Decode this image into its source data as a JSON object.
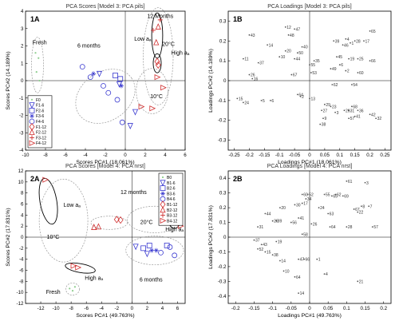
{
  "chart_data": [
    {
      "type": "scatter",
      "panel": "1A",
      "title": "PCA Scores [Model 3: PCA pils]",
      "xlabel": "Scores PC#1 (18.061%)",
      "ylabel": "Scores PC#2 (14.189%)",
      "xlim": [
        -10,
        6
      ],
      "ylim": [
        -4,
        4
      ],
      "xticks": [
        -10,
        -8,
        -6,
        -4,
        -2,
        0,
        2,
        4,
        6
      ],
      "yticks": [
        -4,
        -3,
        -2,
        -1,
        0,
        1,
        2,
        3,
        4
      ],
      "legend": "bottom-left",
      "series": [
        {
          "name": "F0",
          "marker": "dot",
          "color": "#8fcf8f",
          "points": [
            [
              -9.0,
              1.6
            ],
            [
              -8.7,
              1.3
            ],
            [
              -8.9,
              0.5
            ],
            [
              -8.6,
              0.0
            ]
          ]
        },
        {
          "name": "F1-6",
          "marker": "triangle-down",
          "color": "#3a3ad0",
          "points": [
            [
              -2.6,
              0.4
            ],
            [
              -0.6,
              -0.2
            ],
            [
              1.0,
              -1.8
            ],
            [
              0.5,
              -2.6
            ]
          ]
        },
        {
          "name": "F2-6",
          "marker": "square",
          "color": "#3a3ad0",
          "points": [
            [
              -1.0,
              0.3
            ],
            [
              -0.5,
              0.1
            ]
          ]
        },
        {
          "name": "F3-6",
          "marker": "star",
          "color": "#3a3ad0",
          "points": [
            [
              -3.2,
              0.4
            ],
            [
              -0.4,
              -0.3
            ]
          ]
        },
        {
          "name": "F4-6",
          "marker": "circle",
          "color": "#3a3ad0",
          "points": [
            [
              -4.3,
              0.8
            ],
            [
              -3.5,
              0.2
            ],
            [
              -2.2,
              -0.3
            ],
            [
              -1.7,
              -0.7
            ],
            [
              -0.8,
              -1.1
            ],
            [
              -0.3,
              -2.4
            ]
          ]
        },
        {
          "name": "F1-12",
          "marker": "diamond",
          "color": "#d03030",
          "points": [
            [
              3.2,
              1.1
            ],
            [
              3.3,
              0.9
            ]
          ]
        },
        {
          "name": "F2-12",
          "marker": "triangle-up",
          "color": "#d03030",
          "points": [
            [
              3.1,
              2.2
            ],
            [
              3.3,
              3.1
            ]
          ]
        },
        {
          "name": "F3-12",
          "marker": "plus",
          "color": "#d03030",
          "points": [
            [
              2.8,
              2.9
            ],
            [
              3.5,
              3.5
            ]
          ]
        },
        {
          "name": "F4-12",
          "marker": "triangle-right",
          "color": "#d03030",
          "points": [
            [
              3.2,
              0.2
            ],
            [
              3.8,
              -0.4
            ],
            [
              1.6,
              -1.5
            ],
            [
              2.7,
              -1.6
            ]
          ]
        }
      ],
      "annotations": [
        {
          "text": "Fresh",
          "x": -9.3,
          "y": 2.1
        },
        {
          "text": "6 months",
          "x": -4.8,
          "y": 1.9
        },
        {
          "text": "12 Months",
          "x": 2.2,
          "y": 3.6
        },
        {
          "text": "Low aₐ",
          "x": 0.9,
          "y": 2.3
        },
        {
          "text": "20°C",
          "x": 3.7,
          "y": 2.0
        },
        {
          "text": "High aₐ",
          "x": 4.6,
          "y": 1.5
        },
        {
          "text": "10°C",
          "x": 2.5,
          "y": -1.0
        }
      ]
    },
    {
      "type": "scatter",
      "panel": "1B",
      "title": "PCA Loadings [Model 3: PCA pils]",
      "xlabel": "Loadings PC#1 (18.061%)",
      "ylabel": "Loadings PC#2 (14.189%)",
      "xlim": [
        -0.27,
        0.27
      ],
      "ylim": [
        -0.35,
        0.35
      ],
      "xticks": [
        -0.25,
        -0.2,
        -0.15,
        -0.1,
        -0.05,
        0,
        0.05,
        0.1,
        0.15,
        0.2,
        0.25
      ],
      "yticks": [
        -0.3,
        -0.2,
        -0.1,
        0,
        0.1,
        0.2,
        0.3
      ],
      "points": [
        {
          "label": "12",
          "x": -0.08,
          "y": 0.27
        },
        {
          "label": "47",
          "x": -0.05,
          "y": 0.26
        },
        {
          "label": "43",
          "x": -0.2,
          "y": 0.23
        },
        {
          "label": "48",
          "x": -0.07,
          "y": 0.23
        },
        {
          "label": "14",
          "x": -0.14,
          "y": 0.18
        },
        {
          "label": "40",
          "x": -0.025,
          "y": 0.17
        },
        {
          "label": "20",
          "x": -0.08,
          "y": 0.15
        },
        {
          "label": "50",
          "x": -0.04,
          "y": 0.14
        },
        {
          "label": "10",
          "x": -0.1,
          "y": 0.12
        },
        {
          "label": "44",
          "x": -0.05,
          "y": 0.11
        },
        {
          "label": "39",
          "x": 0.08,
          "y": 0.2
        },
        {
          "label": "4",
          "x": 0.12,
          "y": 0.21
        },
        {
          "label": "1",
          "x": 0.135,
          "y": 0.19
        },
        {
          "label": "28",
          "x": 0.15,
          "y": 0.2
        },
        {
          "label": "17",
          "x": 0.18,
          "y": 0.2
        },
        {
          "label": "65",
          "x": 0.2,
          "y": 0.25
        },
        {
          "label": "46",
          "x": 0.11,
          "y": 0.18
        },
        {
          "label": "45",
          "x": 0.09,
          "y": 0.12
        },
        {
          "label": "19",
          "x": 0.13,
          "y": 0.11
        },
        {
          "label": "25",
          "x": 0.16,
          "y": 0.11
        },
        {
          "label": "11",
          "x": -0.22,
          "y": 0.11
        },
        {
          "label": "37",
          "x": -0.17,
          "y": 0.09
        },
        {
          "label": "66",
          "x": 0.2,
          "y": 0.1
        },
        {
          "label": "35",
          "x": 0.015,
          "y": 0.1
        },
        {
          "label": "55",
          "x": 0.0,
          "y": 0.08
        },
        {
          "label": "49",
          "x": 0.07,
          "y": 0.06
        },
        {
          "label": "6",
          "x": 0.1,
          "y": 0.08
        },
        {
          "label": "2",
          "x": 0.12,
          "y": 0.05
        },
        {
          "label": "60",
          "x": 0.16,
          "y": 0.04
        },
        {
          "label": "53",
          "x": 0.005,
          "y": 0.04
        },
        {
          "label": "26",
          "x": -0.2,
          "y": 0.03
        },
        {
          "label": "16",
          "x": -0.19,
          "y": 0.01
        },
        {
          "label": "67",
          "x": -0.06,
          "y": 0.03
        },
        {
          "label": "62",
          "x": 0.075,
          "y": -0.02
        },
        {
          "label": "54",
          "x": 0.14,
          "y": -0.02
        },
        {
          "label": "64",
          "x": -0.04,
          "y": -0.07
        },
        {
          "label": "2",
          "x": -0.03,
          "y": -0.08
        },
        {
          "label": "13",
          "x": 0.0,
          "y": -0.09
        },
        {
          "label": "15",
          "x": -0.24,
          "y": -0.09
        },
        {
          "label": "24",
          "x": -0.22,
          "y": -0.11
        },
        {
          "label": "5",
          "x": -0.16,
          "y": -0.1
        },
        {
          "label": "6",
          "x": -0.13,
          "y": -0.1
        },
        {
          "label": "29",
          "x": 0.05,
          "y": -0.12
        },
        {
          "label": "23",
          "x": 0.07,
          "y": -0.13
        },
        {
          "label": "68",
          "x": 0.14,
          "y": -0.13
        },
        {
          "label": "27",
          "x": 0.04,
          "y": -0.15
        },
        {
          "label": "3",
          "x": 0.085,
          "y": -0.16
        },
        {
          "label": "26",
          "x": 0.115,
          "y": -0.15
        },
        {
          "label": "31",
          "x": 0.13,
          "y": -0.15
        },
        {
          "label": "36",
          "x": 0.16,
          "y": -0.15
        },
        {
          "label": "42",
          "x": 0.2,
          "y": -0.17
        },
        {
          "label": "9",
          "x": 0.045,
          "y": -0.19
        },
        {
          "label": "38",
          "x": 0.035,
          "y": -0.22
        },
        {
          "label": "41",
          "x": 0.15,
          "y": -0.18
        },
        {
          "label": "32",
          "x": 0.22,
          "y": -0.19
        },
        {
          "label": "57",
          "x": 0.13,
          "y": -0.19
        }
      ]
    },
    {
      "type": "scatter",
      "panel": "2A",
      "title": "PCA Scores [Model 4: PCA nrst]",
      "xlabel": "Scores PC#1 (49.763%)",
      "ylabel": "Scores PC#2 (17.831%)",
      "xlim": [
        -14,
        7
      ],
      "ylim": [
        -12,
        12
      ],
      "xticks": [
        -12,
        -10,
        -8,
        -6,
        -4,
        -2,
        0,
        2,
        4,
        6
      ],
      "yticks": [
        -12,
        -10,
        -8,
        -6,
        -4,
        -2,
        0,
        2,
        4,
        6,
        8,
        10,
        12
      ],
      "legend": "top-right",
      "series": [
        {
          "name": "B0",
          "marker": "dot",
          "color": "#8fcf8f",
          "points": [
            [
              -7.5,
              -9.0
            ],
            [
              -8.2,
              -9.3
            ],
            [
              -7.8,
              -9.7
            ]
          ]
        },
        {
          "name": "B1-6",
          "marker": "triangle-down",
          "color": "#3a3ad0",
          "points": [
            [
              0.5,
              -1.7
            ],
            [
              2.0,
              -3.0
            ]
          ]
        },
        {
          "name": "B2-6",
          "marker": "square",
          "color": "#3a3ad0",
          "points": [
            [
              1.5,
              -2.0
            ],
            [
              2.3,
              -1.5
            ],
            [
              4.6,
              -1.5
            ]
          ]
        },
        {
          "name": "B3-6",
          "marker": "star",
          "color": "#3a3ad0",
          "points": [
            [
              3.2,
              -2.4
            ],
            [
              2.6,
              -2.4
            ]
          ]
        },
        {
          "name": "B4-6",
          "marker": "circle",
          "color": "#3a3ad0",
          "points": [
            [
              3.8,
              -2.8
            ],
            [
              5.0,
              -1.8
            ],
            [
              5.6,
              -3.3
            ]
          ]
        },
        {
          "name": "B1-12",
          "marker": "diamond",
          "color": "#d03030",
          "points": [
            [
              -2.0,
              3.2
            ],
            [
              -1.5,
              3.1
            ]
          ]
        },
        {
          "name": "B2-12",
          "marker": "triangle-up",
          "color": "#d03030",
          "points": [
            [
              -5.0,
              1.8
            ],
            [
              -4.4,
              1.9
            ]
          ]
        },
        {
          "name": "B3-12",
          "marker": "plus",
          "color": "#d03030",
          "points": [
            [
              5.4,
              3.4
            ],
            [
              5.7,
              4.0
            ]
          ]
        },
        {
          "name": "B4-12",
          "marker": "triangle-right",
          "color": "#d03030",
          "points": [
            [
              -11.4,
              10.4
            ],
            [
              -7.7,
              -5.2
            ],
            [
              -7.1,
              -5.5
            ],
            [
              6.0,
              2.7
            ],
            [
              6.4,
              2.0
            ]
          ]
        }
      ],
      "annotations": [
        {
          "text": "12 months",
          "x": -1.5,
          "y": 7.8
        },
        {
          "text": "Low aₐ",
          "x": -9.0,
          "y": 5.5
        },
        {
          "text": "10°C",
          "x": -11.2,
          "y": -0.3
        },
        {
          "text": "20°C",
          "x": 1.1,
          "y": 2.4
        },
        {
          "text": "High aₐ",
          "x": 4.4,
          "y": 1.1
        },
        {
          "text": "High aₐ",
          "x": -6.2,
          "y": -7.7
        },
        {
          "text": "Fresh",
          "x": -11.3,
          "y": -10.3
        },
        {
          "text": "6 months",
          "x": 1.0,
          "y": -8.0
        }
      ]
    },
    {
      "type": "scatter",
      "panel": "2B",
      "title": "PCA Loadings [Model 4: PCA nrst]",
      "xlabel": "Loadings PC#1 (49.763%)",
      "ylabel": "Loadings PC#2 (17.831%)",
      "xlim": [
        -0.22,
        0.22
      ],
      "ylim": [
        -0.45,
        0.45
      ],
      "xticks": [
        -0.2,
        -0.15,
        -0.1,
        -0.05,
        0,
        0.05,
        0.1,
        0.15,
        0.2
      ],
      "yticks": [
        -0.4,
        -0.3,
        -0.2,
        -0.1,
        0,
        0.1,
        0.2,
        0.3,
        0.4
      ],
      "points": [
        {
          "label": "3",
          "x": 0.15,
          "y": 0.37
        },
        {
          "label": "61",
          "x": 0.1,
          "y": 0.38
        },
        {
          "label": "8",
          "x": 0.14,
          "y": 0.21
        },
        {
          "label": "7",
          "x": 0.16,
          "y": 0.21
        },
        {
          "label": "57",
          "x": 0.17,
          "y": 0.07
        },
        {
          "label": "28",
          "x": 0.1,
          "y": 0.07
        },
        {
          "label": "22",
          "x": 0.13,
          "y": 0.17
        },
        {
          "label": "67",
          "x": 0.12,
          "y": 0.19
        },
        {
          "label": "63",
          "x": 0.05,
          "y": 0.16
        },
        {
          "label": "24",
          "x": 0.025,
          "y": 0.2
        },
        {
          "label": "55",
          "x": 0.04,
          "y": 0.29
        },
        {
          "label": "62",
          "x": 0.07,
          "y": 0.29
        },
        {
          "label": "69",
          "x": 0.09,
          "y": 0.28
        },
        {
          "label": "65",
          "x": 0.06,
          "y": 0.28
        },
        {
          "label": "60",
          "x": -0.02,
          "y": 0.29
        },
        {
          "label": "52",
          "x": -0.005,
          "y": 0.29
        },
        {
          "label": "34",
          "x": -0.01,
          "y": 0.26
        },
        {
          "label": "30",
          "x": -0.04,
          "y": 0.22
        },
        {
          "label": "17",
          "x": -0.02,
          "y": 0.23
        },
        {
          "label": "20",
          "x": -0.08,
          "y": 0.2
        },
        {
          "label": "44",
          "x": -0.12,
          "y": 0.16
        },
        {
          "label": "39",
          "x": -0.09,
          "y": 0.11
        },
        {
          "label": "29",
          "x": -0.1,
          "y": 0.11
        },
        {
          "label": "56",
          "x": -0.05,
          "y": 0.1
        },
        {
          "label": "41",
          "x": -0.03,
          "y": 0.13
        },
        {
          "label": "26",
          "x": 0.005,
          "y": 0.09
        },
        {
          "label": "64",
          "x": 0.055,
          "y": 0.07
        },
        {
          "label": "31",
          "x": -0.14,
          "y": 0.07
        },
        {
          "label": "58",
          "x": -0.02,
          "y": 0.02
        },
        {
          "label": "37",
          "x": -0.15,
          "y": -0.02
        },
        {
          "label": "43",
          "x": -0.13,
          "y": -0.05
        },
        {
          "label": "52",
          "x": -0.14,
          "y": -0.08
        },
        {
          "label": "15",
          "x": -0.12,
          "y": -0.1
        },
        {
          "label": "38",
          "x": -0.1,
          "y": -0.12
        },
        {
          "label": "19",
          "x": -0.09,
          "y": -0.03
        },
        {
          "label": "14",
          "x": -0.08,
          "y": -0.16
        },
        {
          "label": "66",
          "x": -0.015,
          "y": -0.15
        },
        {
          "label": "47",
          "x": -0.03,
          "y": -0.15
        },
        {
          "label": "10",
          "x": -0.07,
          "y": -0.23
        },
        {
          "label": "64",
          "x": -0.04,
          "y": -0.27
        },
        {
          "label": "4",
          "x": 0.04,
          "y": -0.25
        },
        {
          "label": "21",
          "x": 0.13,
          "y": -0.3
        },
        {
          "label": "1",
          "x": 0.02,
          "y": -0.15
        },
        {
          "label": "14",
          "x": -0.03,
          "y": -0.38
        }
      ]
    }
  ]
}
